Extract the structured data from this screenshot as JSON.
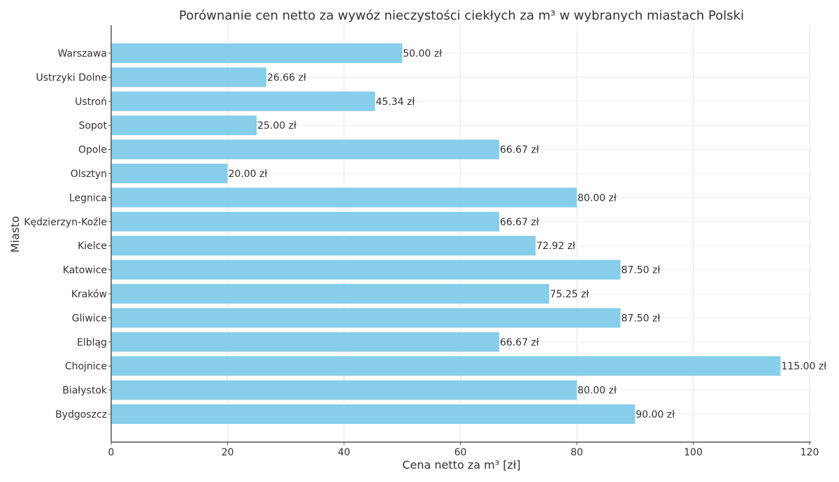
{
  "chart_data": {
    "type": "bar",
    "orientation": "horizontal",
    "title": "Porównanie cen netto za wywóz nieczystości ciekłych za m³ w wybranych miastach Polski",
    "xlabel": "Cena netto za m³ [zł]",
    "ylabel": "Miasto",
    "xlim": [
      0,
      120
    ],
    "xticks": [
      0,
      20,
      40,
      60,
      80,
      100,
      120
    ],
    "grid": true,
    "bar_color": "#87CEEB",
    "categories": [
      "Warszawa",
      "Ustrzyki Dolne",
      "Ustroń",
      "Sopot",
      "Opole",
      "Olsztyn",
      "Legnica",
      "Kędzierzyn-Koźle",
      "Kielce",
      "Katowice",
      "Kraków",
      "Gliwice",
      "Elbląg",
      "Chojnice",
      "Białystok",
      "Bydgoszcz"
    ],
    "values": [
      50.0,
      26.66,
      45.34,
      25.0,
      66.67,
      20.0,
      80.0,
      66.67,
      72.92,
      87.5,
      75.25,
      87.5,
      66.67,
      115.0,
      80.0,
      90.0
    ],
    "data_labels": [
      "50.00 zł",
      "26.66 zł",
      "45.34 zł",
      "25.00 zł",
      "66.67 zł",
      "20.00 zł",
      "80.00 zł",
      "66.67 zł",
      "72.92 zł",
      "87.50 zł",
      "75.25 zł",
      "87.50 zł",
      "66.67 zł",
      "115.00 zł",
      "80.00 zł",
      "90.00 zł"
    ]
  }
}
